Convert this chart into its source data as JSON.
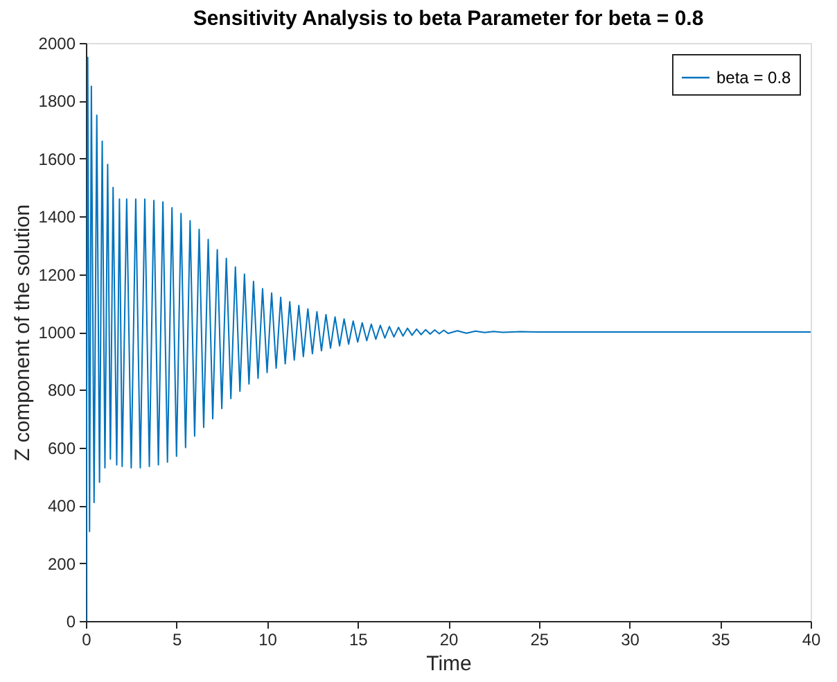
{
  "chart_data": {
    "type": "line",
    "title": "Sensitivity Analysis to beta Parameter for beta = 0.8",
    "xlabel": "Time",
    "ylabel": "Z component of the solution",
    "x": [
      0,
      0.1,
      0.2,
      0.3,
      0.45,
      0.6,
      0.75,
      0.9,
      1.05,
      1.2,
      1.35,
      1.5,
      1.7,
      1.85,
      2.0,
      2.25,
      2.5,
      2.75,
      3.0,
      3.25,
      3.5,
      3.75,
      4.0,
      4.25,
      4.5,
      4.75,
      5.0,
      5.25,
      5.5,
      5.75,
      6.0,
      6.25,
      6.5,
      6.75,
      7.0,
      7.25,
      7.5,
      7.75,
      8.0,
      8.25,
      8.5,
      8.75,
      9.0,
      9.25,
      9.5,
      9.75,
      10.0,
      10.25,
      10.5,
      10.75,
      11.0,
      11.25,
      11.5,
      11.75,
      12.0,
      12.25,
      12.5,
      12.75,
      13.0,
      13.25,
      13.5,
      13.75,
      14.0,
      14.25,
      14.5,
      14.75,
      15.0,
      15.25,
      15.5,
      15.75,
      16.0,
      16.25,
      16.5,
      16.75,
      17.0,
      17.25,
      17.5,
      17.75,
      18.0,
      18.25,
      18.5,
      18.75,
      19.0,
      19.25,
      19.5,
      19.75,
      20.0,
      20.5,
      21.0,
      21.5,
      22.0,
      22.5,
      23.0,
      24,
      25,
      40
    ],
    "series": [
      {
        "name": "beta = 0.8",
        "color": "#0072bd",
        "values": [
          0,
          1950,
          310,
          1850,
          410,
          1750,
          480,
          1660,
          530,
          1580,
          560,
          1500,
          540,
          1460,
          535,
          1460,
          530,
          1460,
          530,
          1460,
          535,
          1455,
          540,
          1450,
          550,
          1430,
          570,
          1410,
          600,
          1385,
          640,
          1355,
          670,
          1320,
          700,
          1285,
          735,
          1255,
          770,
          1225,
          795,
          1200,
          820,
          1175,
          840,
          1150,
          860,
          1135,
          875,
          1120,
          890,
          1105,
          903,
          1092,
          915,
          1080,
          925,
          1070,
          935,
          1060,
          944,
          1052,
          952,
          1045,
          958,
          1038,
          965,
          1032,
          970,
          1027,
          975,
          1023,
          979,
          1019,
          983,
          1016,
          986,
          1013,
          989,
          1010,
          991,
          1008,
          993,
          1007,
          994,
          1006,
          995,
          1004,
          996,
          1003,
          998,
          1002,
          999,
          1001,
          1000,
          1000
        ]
      }
    ],
    "xlim": [
      0,
      40
    ],
    "xticks": [
      0,
      5,
      10,
      15,
      20,
      25,
      30,
      35,
      40
    ],
    "ylim": [
      0,
      2000
    ],
    "yticks": [
      0,
      200,
      400,
      600,
      800,
      1000,
      1200,
      1400,
      1600,
      1800,
      2000
    ],
    "legend": "top right",
    "grid": false,
    "line_style": "solid"
  }
}
